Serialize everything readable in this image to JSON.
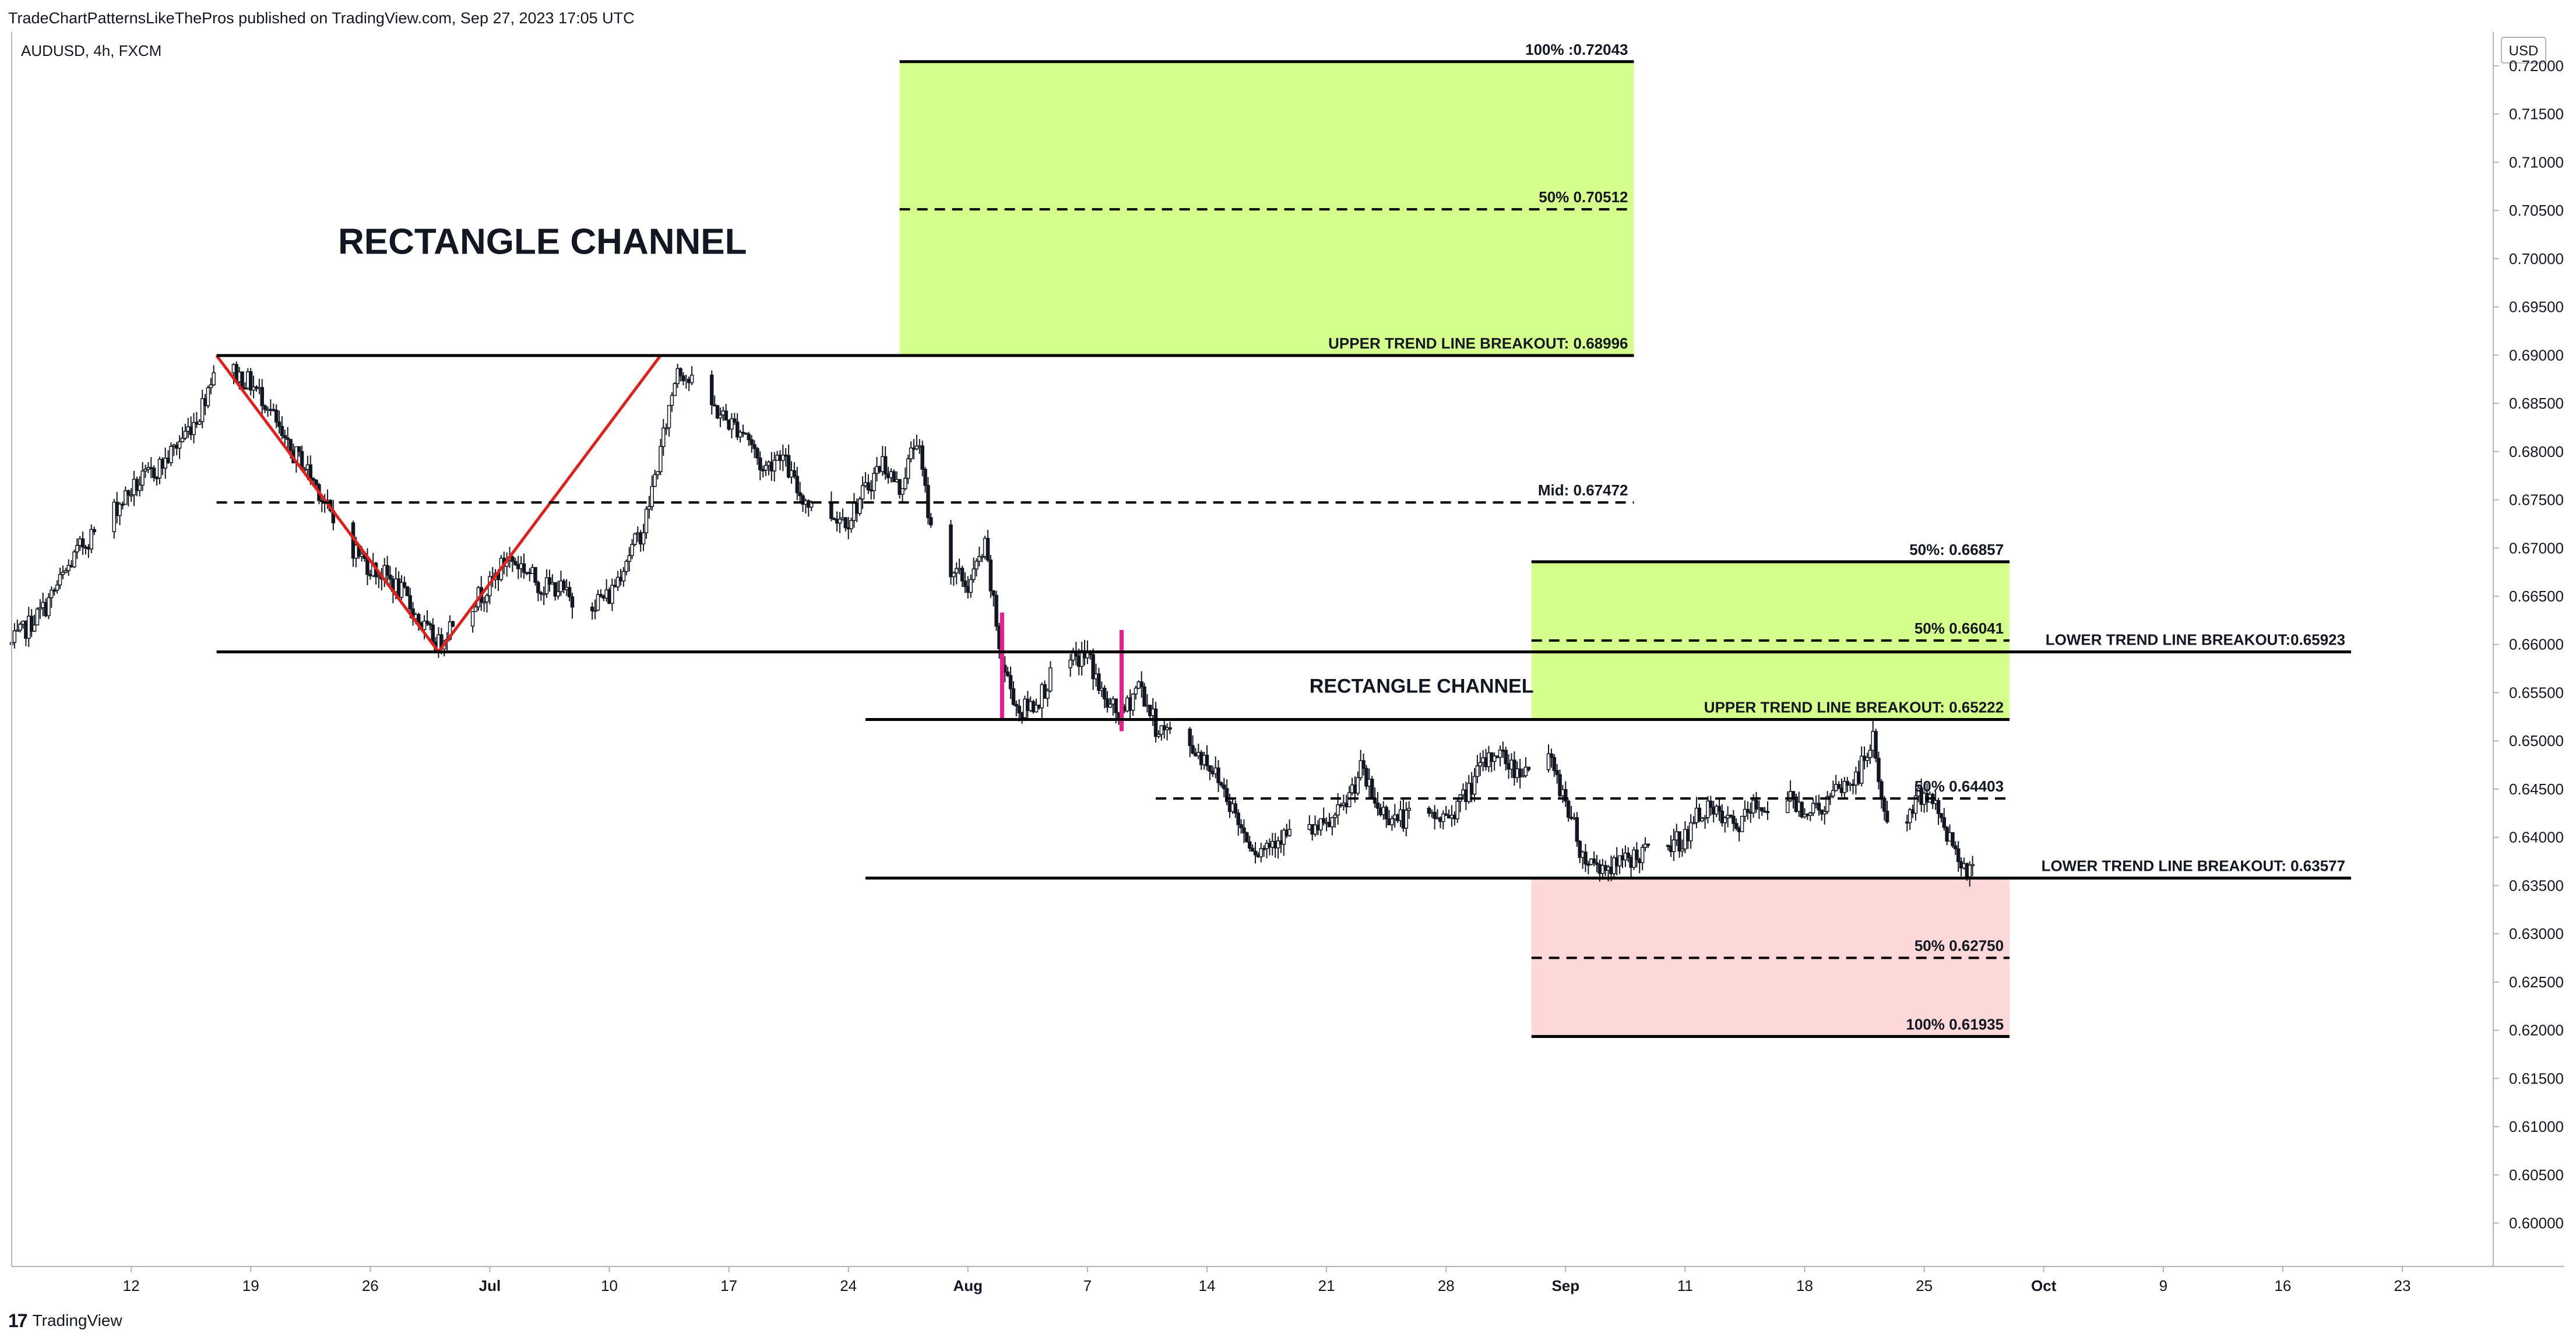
{
  "header": {
    "publish_line": "TradeChartPatternsLikeThePros published on TradingView.com, Sep 27, 2023 17:05 UTC"
  },
  "footer": {
    "brand_mark": "17",
    "brand_name": "TradingView"
  },
  "chart_data": {
    "type": "candlestick",
    "symbol_line": "AUDUSD, 4h, FXCM",
    "currency": "USD",
    "title": "RECTANGLE CHANNEL",
    "ylim": [
      0.5955,
      0.7235
    ],
    "y_ticks": [
      "0.72000",
      "0.71500",
      "0.71000",
      "0.70500",
      "0.70000",
      "0.69500",
      "0.69000",
      "0.68500",
      "0.68000",
      "0.67500",
      "0.67000",
      "0.66500",
      "0.66000",
      "0.65500",
      "0.65000",
      "0.64500",
      "0.64000",
      "0.63500",
      "0.63000",
      "0.62500",
      "0.62000",
      "0.61500",
      "0.61000",
      "0.60500",
      "0.60000"
    ],
    "x_ticks": [
      {
        "label": "12",
        "date": "2023-06-12",
        "bold": false
      },
      {
        "label": "19",
        "date": "2023-06-19",
        "bold": false
      },
      {
        "label": "26",
        "date": "2023-06-26",
        "bold": false
      },
      {
        "label": "Jul",
        "date": "2023-07-03",
        "bold": true
      },
      {
        "label": "10",
        "date": "2023-07-10",
        "bold": false
      },
      {
        "label": "17",
        "date": "2023-07-17",
        "bold": false
      },
      {
        "label": "24",
        "date": "2023-07-24",
        "bold": false
      },
      {
        "label": "Aug",
        "date": "2023-07-31",
        "bold": true
      },
      {
        "label": "7",
        "date": "2023-08-07",
        "bold": false
      },
      {
        "label": "14",
        "date": "2023-08-14",
        "bold": false
      },
      {
        "label": "21",
        "date": "2023-08-21",
        "bold": false
      },
      {
        "label": "28",
        "date": "2023-08-28",
        "bold": false
      },
      {
        "label": "Sep",
        "date": "2023-09-04",
        "bold": true
      },
      {
        "label": "11",
        "date": "2023-09-11",
        "bold": false
      },
      {
        "label": "18",
        "date": "2023-09-18",
        "bold": false
      },
      {
        "label": "25",
        "date": "2023-09-25",
        "bold": false
      },
      {
        "label": "Oct",
        "date": "2023-10-02",
        "bold": true
      },
      {
        "label": "9",
        "date": "2023-10-09",
        "bold": false
      },
      {
        "label": "16",
        "date": "2023-10-16",
        "bold": false
      },
      {
        "label": "23",
        "date": "2023-10-23",
        "bold": false
      }
    ],
    "price_path": [
      {
        "date": "2023-06-05",
        "price": 0.66
      },
      {
        "date": "2023-06-07",
        "price": 0.664
      },
      {
        "date": "2023-06-09",
        "price": 0.67
      },
      {
        "date": "2023-06-12",
        "price": 0.676
      },
      {
        "date": "2023-06-14",
        "price": 0.679
      },
      {
        "date": "2023-06-16",
        "price": 0.684
      },
      {
        "date": "2023-06-17",
        "price": 0.6895
      },
      {
        "date": "2023-06-19",
        "price": 0.687
      },
      {
        "date": "2023-06-20",
        "price": 0.685
      },
      {
        "date": "2023-06-21",
        "price": 0.6805
      },
      {
        "date": "2023-06-22",
        "price": 0.679
      },
      {
        "date": "2023-06-23",
        "price": 0.676
      },
      {
        "date": "2023-06-24",
        "price": 0.672
      },
      {
        "date": "2023-06-26",
        "price": 0.668
      },
      {
        "date": "2023-06-27",
        "price": 0.667
      },
      {
        "date": "2023-06-28",
        "price": 0.665
      },
      {
        "date": "2023-06-29",
        "price": 0.662
      },
      {
        "date": "2023-06-30",
        "price": 0.66
      },
      {
        "date": "2023-07-01",
        "price": 0.663
      },
      {
        "date": "2023-07-03",
        "price": 0.666
      },
      {
        "date": "2023-07-04",
        "price": 0.669
      },
      {
        "date": "2023-07-05",
        "price": 0.668
      },
      {
        "date": "2023-07-06",
        "price": 0.666
      },
      {
        "date": "2023-07-07",
        "price": 0.666
      },
      {
        "date": "2023-07-08",
        "price": 0.664
      },
      {
        "date": "2023-07-10",
        "price": 0.665
      },
      {
        "date": "2023-07-11",
        "price": 0.669
      },
      {
        "date": "2023-07-12",
        "price": 0.672
      },
      {
        "date": "2023-07-13",
        "price": 0.68
      },
      {
        "date": "2023-07-14",
        "price": 0.689
      },
      {
        "date": "2023-07-15",
        "price": 0.6865
      },
      {
        "date": "2023-07-17",
        "price": 0.683
      },
      {
        "date": "2023-07-18",
        "price": 0.682
      },
      {
        "date": "2023-07-19",
        "price": 0.678
      },
      {
        "date": "2023-07-20",
        "price": 0.68
      },
      {
        "date": "2023-07-21",
        "price": 0.676
      },
      {
        "date": "2023-07-22",
        "price": 0.674
      },
      {
        "date": "2023-07-24",
        "price": 0.673
      },
      {
        "date": "2023-07-25",
        "price": 0.676
      },
      {
        "date": "2023-07-26",
        "price": 0.679
      },
      {
        "date": "2023-07-27",
        "price": 0.676
      },
      {
        "date": "2023-07-28",
        "price": 0.6815
      },
      {
        "date": "2023-07-29",
        "price": 0.67
      },
      {
        "date": "2023-07-31",
        "price": 0.666
      },
      {
        "date": "2023-08-01",
        "price": 0.67
      },
      {
        "date": "2023-08-02",
        "price": 0.658
      },
      {
        "date": "2023-08-03",
        "price": 0.653
      },
      {
        "date": "2023-08-04",
        "price": 0.654
      },
      {
        "date": "2023-08-05",
        "price": 0.657
      },
      {
        "date": "2023-08-07",
        "price": 0.659
      },
      {
        "date": "2023-08-08",
        "price": 0.654
      },
      {
        "date": "2023-08-09",
        "price": 0.6525
      },
      {
        "date": "2023-08-10",
        "price": 0.656
      },
      {
        "date": "2023-08-11",
        "price": 0.6515
      },
      {
        "date": "2023-08-13",
        "price": 0.6495
      },
      {
        "date": "2023-08-14",
        "price": 0.648
      },
      {
        "date": "2023-08-15",
        "price": 0.645
      },
      {
        "date": "2023-08-16",
        "price": 0.641
      },
      {
        "date": "2023-08-17",
        "price": 0.6385
      },
      {
        "date": "2023-08-18",
        "price": 0.64
      },
      {
        "date": "2023-08-21",
        "price": 0.641
      },
      {
        "date": "2023-08-22",
        "price": 0.643
      },
      {
        "date": "2023-08-23",
        "price": 0.647
      },
      {
        "date": "2023-08-24",
        "price": 0.643
      },
      {
        "date": "2023-08-25",
        "price": 0.642
      },
      {
        "date": "2023-08-28",
        "price": 0.642
      },
      {
        "date": "2023-08-29",
        "price": 0.644
      },
      {
        "date": "2023-08-30",
        "price": 0.647
      },
      {
        "date": "2023-08-31",
        "price": 0.649
      },
      {
        "date": "2023-09-01",
        "price": 0.647
      },
      {
        "date": "2023-09-03",
        "price": 0.648
      },
      {
        "date": "2023-09-04",
        "price": 0.644
      },
      {
        "date": "2023-09-05",
        "price": 0.638
      },
      {
        "date": "2023-09-06",
        "price": 0.637
      },
      {
        "date": "2023-09-07",
        "price": 0.637
      },
      {
        "date": "2023-09-08",
        "price": 0.638
      },
      {
        "date": "2023-09-10",
        "price": 0.639
      },
      {
        "date": "2023-09-11",
        "price": 0.64
      },
      {
        "date": "2023-09-12",
        "price": 0.643
      },
      {
        "date": "2023-09-13",
        "price": 0.642
      },
      {
        "date": "2023-09-14",
        "price": 0.641
      },
      {
        "date": "2023-09-15",
        "price": 0.643
      },
      {
        "date": "2023-09-17",
        "price": 0.644
      },
      {
        "date": "2023-09-18",
        "price": 0.643
      },
      {
        "date": "2023-09-19",
        "price": 0.643
      },
      {
        "date": "2023-09-20",
        "price": 0.645
      },
      {
        "date": "2023-09-21",
        "price": 0.646
      },
      {
        "date": "2023-09-22",
        "price": 0.65
      },
      {
        "date": "2023-09-23",
        "price": 0.639
      },
      {
        "date": "2023-09-24",
        "price": 0.642
      },
      {
        "date": "2023-09-25",
        "price": 0.645
      },
      {
        "date": "2023-09-26",
        "price": 0.642
      },
      {
        "date": "2023-09-27",
        "price": 0.638
      },
      {
        "date": "2023-09-28",
        "price": 0.636
      }
    ],
    "horizontal_levels": [
      {
        "label": "100% :0.72043",
        "price": 0.72043,
        "from": "2023-07-27",
        "to": "2023-09-08",
        "style": "solid",
        "label_align": "end"
      },
      {
        "label": "50% 0.70512",
        "price": 0.70512,
        "from": "2023-07-27",
        "to": "2023-09-08",
        "style": "dashed",
        "label_align": "end"
      },
      {
        "label": "UPPER TREND LINE BREAKOUT: 0.68996",
        "price": 0.68996,
        "from": "2023-06-17",
        "to": "2023-09-08",
        "style": "solid",
        "label_align": "end"
      },
      {
        "label": "Mid: 0.67472",
        "price": 0.67472,
        "from": "2023-06-17",
        "to": "2023-09-08",
        "style": "dashed",
        "label_align": "end"
      },
      {
        "label": "50%: 0.66857",
        "price": 0.66857,
        "from": "2023-09-02",
        "to": "2023-09-30",
        "style": "solid",
        "label_align": "end"
      },
      {
        "label": "50% 0.66041",
        "price": 0.66041,
        "from": "2023-09-02",
        "to": "2023-09-30",
        "style": "dashed",
        "label_align": "end"
      },
      {
        "label": "LOWER TREND LINE BREAKOUT:0.65923",
        "price": 0.65923,
        "from": "2023-06-17",
        "to": "2023-10-20",
        "style": "solid",
        "label_align": "end"
      },
      {
        "label": "UPPER TREND LINE BREAKOUT: 0.65222",
        "price": 0.65222,
        "from": "2023-07-25",
        "to": "2023-09-30",
        "style": "solid",
        "label_align": "end"
      },
      {
        "label": "50% 0.64403",
        "price": 0.64403,
        "from": "2023-08-11",
        "to": "2023-09-30",
        "style": "dashed",
        "label_align": "end"
      },
      {
        "label": "LOWER TREND LINE BREAKOUT: 0.63577",
        "price": 0.63577,
        "from": "2023-07-25",
        "to": "2023-10-20",
        "style": "solid",
        "label_align": "end"
      },
      {
        "label": "50% 0.62750",
        "price": 0.6275,
        "from": "2023-09-02",
        "to": "2023-09-30",
        "style": "dashed",
        "label_align": "end"
      },
      {
        "label": "100% 0.61935",
        "price": 0.61935,
        "from": "2023-09-02",
        "to": "2023-09-30",
        "style": "solid",
        "label_align": "end"
      }
    ],
    "zones": [
      {
        "name": "target-upper-zone",
        "from": "2023-07-27",
        "to": "2023-09-08",
        "top": 0.72043,
        "bottom": 0.68996,
        "color": "#d4ff8c"
      },
      {
        "name": "target-mid-zone",
        "from": "2023-09-02",
        "to": "2023-09-30",
        "top": 0.66857,
        "bottom": 0.65222,
        "color": "#d4ff8c"
      },
      {
        "name": "target-lower-zone",
        "from": "2023-09-02",
        "to": "2023-09-30",
        "top": 0.63577,
        "bottom": 0.61935,
        "color": "#fcd8d8"
      }
    ],
    "red_lines": [
      {
        "from": {
          "date": "2023-06-17",
          "price": 0.68996
        },
        "to": {
          "date": "2023-06-30",
          "price": 0.65923
        }
      },
      {
        "from": {
          "date": "2023-06-30",
          "price": 0.65923
        },
        "to": {
          "date": "2023-07-13",
          "price": 0.68996
        }
      }
    ],
    "pink_markers": [
      {
        "date": "2023-08-02",
        "high": 0.6633,
        "low": 0.6523
      },
      {
        "date": "2023-08-09",
        "high": 0.6615,
        "low": 0.651
      }
    ],
    "annotations": [
      {
        "text": "RECTANGLE CHANNEL",
        "date": "2023-06-16",
        "price": 0.7005,
        "size": "large"
      },
      {
        "text": "RECTANGLE CHANNEL",
        "date": "2023-08-20",
        "price": 0.655,
        "size": "medium"
      }
    ],
    "colors": {
      "candle": "#131722",
      "red_line": "#e0201b",
      "pink_marker": "#e91e8c",
      "level_line": "#000000"
    }
  }
}
